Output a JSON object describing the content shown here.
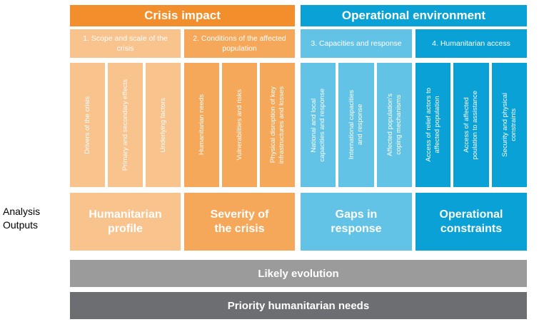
{
  "side_label": "Analysis\nOutputs",
  "headers": [
    {
      "text": "Crisis impact"
    },
    {
      "text": "Operational environment"
    }
  ],
  "subheaders": [
    {
      "text": "1. Scope and scale of the crisis"
    },
    {
      "text": "2. Conditions of the affected population"
    },
    {
      "text": "3. Capacities and response"
    },
    {
      "text": "4. Humanitarian access"
    }
  ],
  "columns": [
    {
      "text": "Drivers of the crisis"
    },
    {
      "text": "Primary and secondary effects"
    },
    {
      "text": "Underlying factors"
    },
    {
      "text": "Humanitarian needs"
    },
    {
      "text": "Vulnerabilities and risks"
    },
    {
      "text": "Physical disruption of key\ninfrastructures and losses"
    },
    {
      "text": "National and local\ncapacities and response"
    },
    {
      "text": "International capacities\nand response"
    },
    {
      "text": "Affected population's\ncoping mechanisms"
    },
    {
      "text": "Access of relief actors to\naffected population"
    },
    {
      "text": "Access of affected\npoulation to assistance"
    },
    {
      "text": "Security and physical\nconstraints"
    }
  ],
  "outputs": [
    {
      "text": "Humanitarian\nprofile"
    },
    {
      "text": "Severity of\nthe crisis"
    },
    {
      "text": "Gaps in\nresponse"
    },
    {
      "text": "Operational\nconstraints"
    }
  ],
  "bars": {
    "likely_evolution": "Likely evolution",
    "priority_needs": "Priority humanitarian needs"
  },
  "colors": {
    "orange_dark": "#f28e2b",
    "orange_mid": "#f5a85a",
    "orange_light": "#f9c38e",
    "blue_dark": "#0aa1d6",
    "blue_mid": "#3fb6e0",
    "blue_light": "#62c3e6",
    "grey_light": "#9b9b9b",
    "grey_dark": "#6d6e71"
  }
}
